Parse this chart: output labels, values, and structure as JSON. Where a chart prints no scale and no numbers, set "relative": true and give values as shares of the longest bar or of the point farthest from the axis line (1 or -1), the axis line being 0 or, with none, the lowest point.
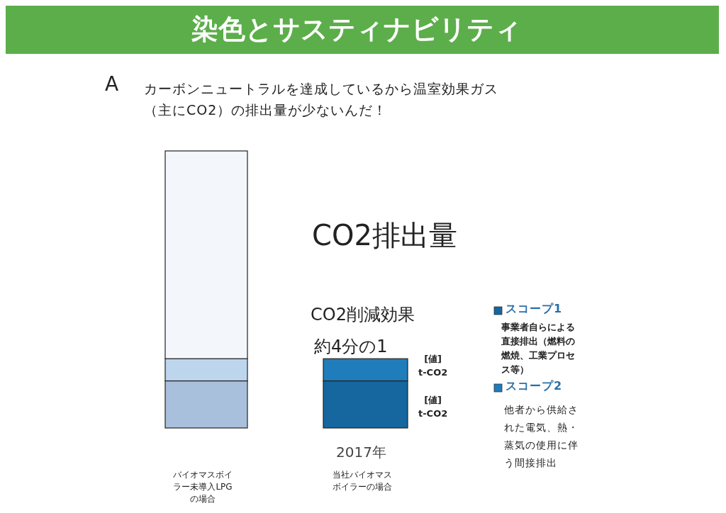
{
  "chart_data": {
    "type": "bar",
    "title": "染色とサスティナビリティ",
    "subtitle": "CO2排出量",
    "categories": [
      "バイオマスボイラー未導入LPGの場合",
      "当社バイオマスボイラーの場合"
    ],
    "relative": true,
    "stacked": true,
    "legend": "right",
    "series": [
      {
        "name": "スコープ1",
        "color": "#16679f",
        "colors": [
          "#a9c0dd",
          "#16679f"
        ],
        "values": [
          0.17,
          0.17
        ]
      },
      {
        "name": "スコープ2",
        "color": "#1f7dbb",
        "colors": [
          "#bed5ee",
          "#1f7dbb"
        ],
        "values": [
          0.08,
          0.08
        ]
      },
      {
        "color": "#f3f6fa",
        "values": [
          0.75,
          null
        ]
      }
    ],
    "annotations": [
      "A",
      "カーボンニュートラルを達成しているから温室効果ガス（主にCO2）の排出量が少ないんだ！",
      "CO2削減効果",
      "約4分の1",
      "2017年",
      "事業者自らによる直接排出（燃料の燃焼、工業プロセス等）",
      "他者から供給された電気、熱・蒸気の使用に伴う間接排出",
      "[値]\nt-CO2",
      "[値]\nt-CO2"
    ]
  }
}
